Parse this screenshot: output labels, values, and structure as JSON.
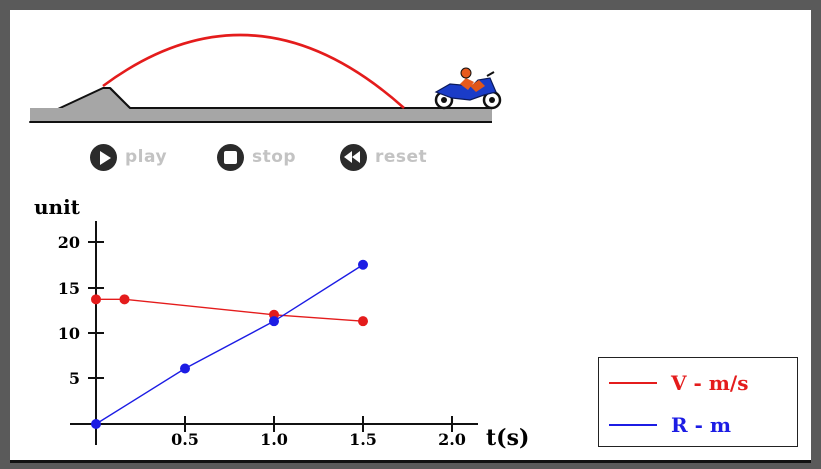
{
  "colors": {
    "velocity": "#e41c1c",
    "range": "#1c1ce4",
    "ground": "#a6a6a6",
    "frame": "#5a5a5a",
    "control_text": "#c3c3c3",
    "control_icon": "#2b2b2b"
  },
  "controls": {
    "play": {
      "label": "play",
      "icon": "play-icon"
    },
    "stop": {
      "label": "stop",
      "icon": "stop-icon"
    },
    "reset": {
      "label": "reset",
      "icon": "rewind-icon"
    }
  },
  "graph": {
    "y_title": "unit",
    "x_title": "t(s)",
    "y_ticks": [
      "5",
      "10",
      "15",
      "20"
    ],
    "x_ticks": [
      "0.5",
      "1.0",
      "1.5",
      "2.0"
    ]
  },
  "legend": {
    "velocity_label": "V - m/s",
    "range_label": "R - m"
  },
  "chart_data": {
    "type": "line",
    "title": "",
    "xlabel": "t(s)",
    "ylabel": "unit",
    "xlim": [
      0,
      2.2
    ],
    "ylim": [
      0,
      21.5
    ],
    "grid": false,
    "legend_position": "bottom-right",
    "series": [
      {
        "name": "V - m/s",
        "color": "#e41c1c",
        "x": [
          0,
          0.16,
          1.0,
          1.5
        ],
        "y": [
          13.7,
          13.7,
          12.0,
          11.3
        ]
      },
      {
        "name": "R - m",
        "color": "#1c1ce4",
        "x": [
          0,
          0.5,
          1.0,
          1.5
        ],
        "y": [
          0,
          6.1,
          11.3,
          17.5
        ]
      }
    ]
  }
}
